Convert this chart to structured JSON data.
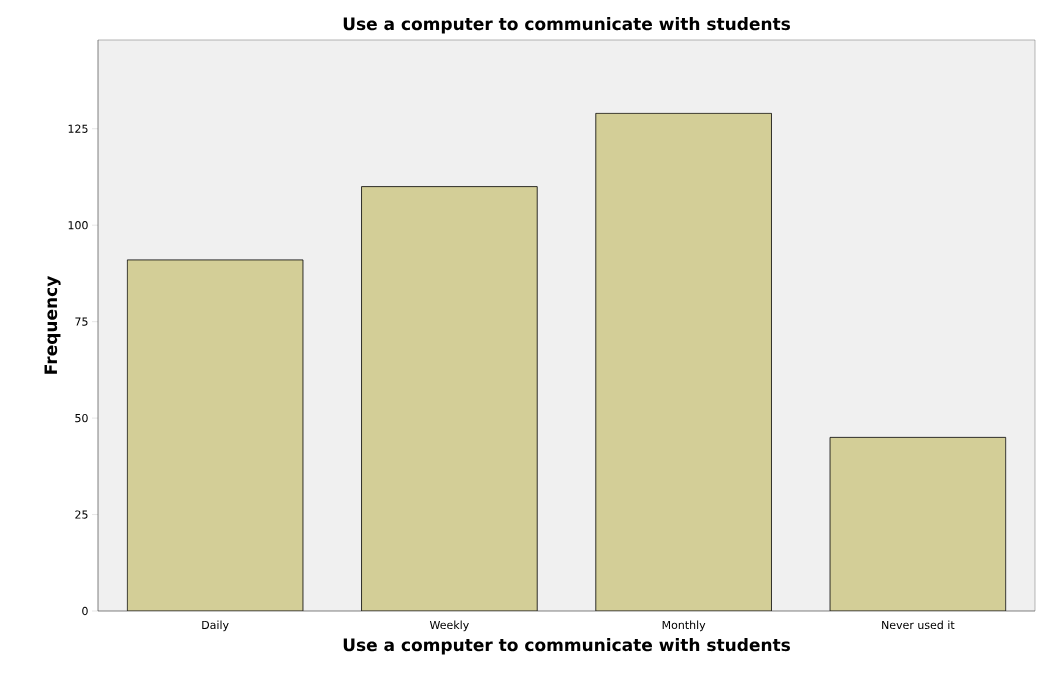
{
  "chart_data": {
    "type": "bar",
    "title": "Use a computer to communicate with students",
    "xlabel": "Use a computer to communicate with students",
    "ylabel": "Frequency",
    "categories": [
      "Daily",
      "Weekly",
      "Monthly",
      "Never used it"
    ],
    "values": [
      91,
      110,
      129,
      45
    ],
    "color": "#d3ce97",
    "ylim": [
      0,
      148
    ],
    "yticks": [
      0,
      25,
      50,
      75,
      100,
      125
    ],
    "grid": false
  }
}
